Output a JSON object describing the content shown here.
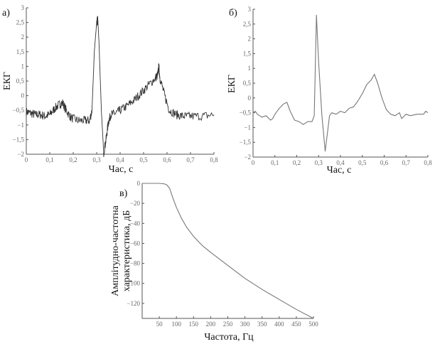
{
  "chart_data": [
    {
      "type": "line",
      "panel_label": "а)",
      "xlabel": "Час, с",
      "ylabel": "ЕКГ",
      "xlim": [
        0,
        0.8
      ],
      "ylim": [
        -2,
        3
      ],
      "xticks": [
        "0",
        "0,1",
        "0,2",
        "0,3",
        "0,4",
        "0,5",
        "0,6",
        "0,7",
        "0,8"
      ],
      "yticks": [
        "3",
        "2,5",
        "2",
        "1,5",
        "1",
        "0,5",
        "0",
        "-0,5",
        "-1",
        "-1,5",
        "-2"
      ],
      "noisy": true,
      "color": "#333333",
      "x": [
        0,
        0.02,
        0.04,
        0.06,
        0.08,
        0.1,
        0.12,
        0.14,
        0.155,
        0.17,
        0.19,
        0.22,
        0.25,
        0.27,
        0.28,
        0.29,
        0.3,
        0.305,
        0.31,
        0.32,
        0.33,
        0.34,
        0.35,
        0.36,
        0.38,
        0.4,
        0.43,
        0.46,
        0.49,
        0.52,
        0.55,
        0.56,
        0.565,
        0.57,
        0.59,
        0.61,
        0.64,
        0.67,
        0.7,
        0.75,
        0.8
      ],
      "y": [
        -0.55,
        -0.6,
        -0.65,
        -0.65,
        -0.7,
        -0.65,
        -0.45,
        -0.3,
        -0.25,
        -0.5,
        -0.75,
        -0.85,
        -0.85,
        -0.85,
        -0.5,
        1.5,
        2.5,
        2.6,
        1.8,
        -0.5,
        -1.95,
        -1.5,
        -0.9,
        -0.65,
        -0.6,
        -0.5,
        -0.35,
        -0.15,
        0.1,
        0.35,
        0.6,
        0.7,
        1.0,
        0.6,
        0.0,
        -0.5,
        -0.65,
        -0.7,
        -0.7,
        -0.7,
        -0.65
      ]
    },
    {
      "type": "line",
      "panel_label": "б)",
      "xlabel": "Час, с",
      "ylabel": "ЕКГ",
      "xlim": [
        0,
        0.8
      ],
      "ylim": [
        -2,
        3
      ],
      "xticks": [
        "0",
        "0,1",
        "0,2",
        "0,3",
        "0,4",
        "0,5",
        "0,6",
        "0,7",
        "0,8"
      ],
      "yticks": [
        "3",
        "2,5",
        "2",
        "1,5",
        "1",
        "0,5",
        "0",
        "-0,5",
        "-1",
        "-1,5",
        "-2"
      ],
      "noisy": false,
      "color": "#777777",
      "x": [
        0,
        0.01,
        0.02,
        0.04,
        0.06,
        0.08,
        0.09,
        0.1,
        0.12,
        0.14,
        0.155,
        0.17,
        0.19,
        0.21,
        0.23,
        0.25,
        0.27,
        0.28,
        0.29,
        0.3,
        0.315,
        0.33,
        0.34,
        0.35,
        0.36,
        0.38,
        0.4,
        0.42,
        0.44,
        0.46,
        0.48,
        0.5,
        0.52,
        0.54,
        0.555,
        0.57,
        0.59,
        0.61,
        0.63,
        0.65,
        0.67,
        0.68,
        0.7,
        0.72,
        0.75,
        0.78,
        0.79,
        0.8
      ],
      "y": [
        -0.5,
        -0.45,
        -0.55,
        -0.65,
        -0.6,
        -0.75,
        -0.7,
        -0.55,
        -0.35,
        -0.2,
        -0.15,
        -0.45,
        -0.75,
        -0.8,
        -0.9,
        -0.8,
        -0.8,
        -0.6,
        2.8,
        1.2,
        -0.6,
        -1.8,
        -1.2,
        -0.6,
        -0.5,
        -0.55,
        -0.45,
        -0.5,
        -0.35,
        -0.3,
        -0.1,
        0.15,
        0.45,
        0.6,
        0.8,
        0.5,
        0.0,
        -0.4,
        -0.55,
        -0.6,
        -0.5,
        -0.7,
        -0.55,
        -0.6,
        -0.55,
        -0.55,
        -0.45,
        -0.5
      ]
    },
    {
      "type": "line",
      "panel_label": "в)",
      "xlabel": "Частота, Гц",
      "ylabel_lines": [
        "Амплітудно-частотна",
        "характеристика, дБ"
      ],
      "xlim": [
        0,
        500
      ],
      "ylim": [
        -135,
        0
      ],
      "xticks": [
        "50",
        "100",
        "150",
        "200",
        "250",
        "300",
        "350",
        "400",
        "450",
        "500"
      ],
      "yticks": [
        "0",
        "-20",
        "-40",
        "-60",
        "-80",
        "-100",
        "-120"
      ],
      "noisy": false,
      "color": "#777777",
      "x": [
        0,
        50,
        65,
        72,
        80,
        90,
        100,
        115,
        130,
        150,
        175,
        200,
        250,
        300,
        350,
        400,
        450,
        500
      ],
      "y": [
        0,
        0,
        -0.5,
        -1.5,
        -5,
        -15,
        -24,
        -35,
        -44,
        -53,
        -62,
        -69,
        -82,
        -95,
        -106,
        -116,
        -126,
        -135
      ]
    }
  ]
}
